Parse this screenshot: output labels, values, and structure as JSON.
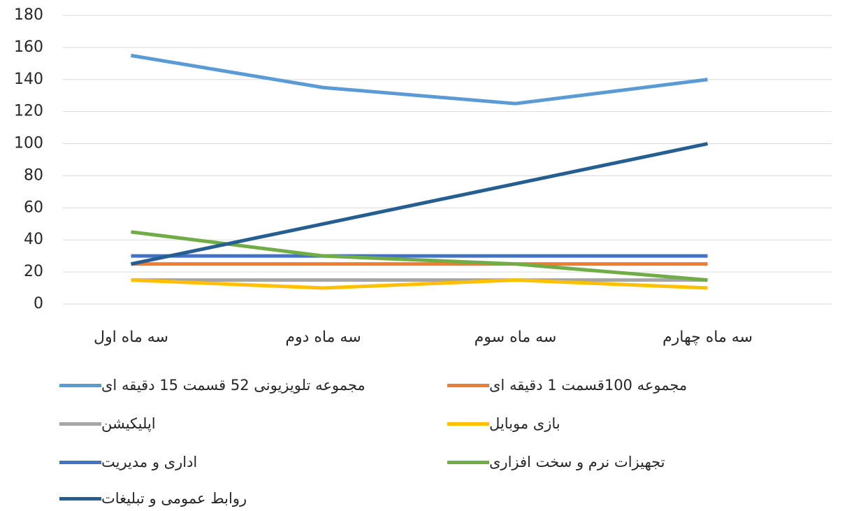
{
  "chart_data": {
    "type": "line",
    "categories": [
      "سه ماه اول",
      "سه ماه دوم",
      "سه ماه سوم",
      "سه ماه چهارم"
    ],
    "series": [
      {
        "name": "مجموعه تلویزیونی 52 قسمت 15 دقیقه ای",
        "color": "#5b9bd5",
        "values": [
          155,
          135,
          125,
          140
        ]
      },
      {
        "name": "مجموعه 100قسمت 1 دقیقه ای",
        "color": "#ed7d31",
        "values": [
          25,
          25,
          25,
          25
        ]
      },
      {
        "name": "اپلیکیشن",
        "color": "#a5a5a5",
        "values": [
          15,
          15,
          15,
          15
        ]
      },
      {
        "name": "بازی موبایل",
        "color": "#ffc000",
        "values": [
          15,
          10,
          15,
          10
        ]
      },
      {
        "name": "اداری و مدیریت",
        "color": "#4472c4",
        "values": [
          30,
          30,
          30,
          30
        ]
      },
      {
        "name": "تجهیزات نرم و سخت افزاری",
        "color": "#70ad47",
        "values": [
          45,
          30,
          25,
          15
        ]
      },
      {
        "name": "روابط عمومی و تبلیغات",
        "color": "#255e91",
        "values": [
          25,
          50,
          75,
          100
        ]
      }
    ],
    "ylim": [
      0,
      180
    ],
    "yticks": [
      0,
      20,
      40,
      60,
      80,
      100,
      120,
      140,
      160,
      180
    ],
    "grid": true,
    "legend": "bottom"
  }
}
